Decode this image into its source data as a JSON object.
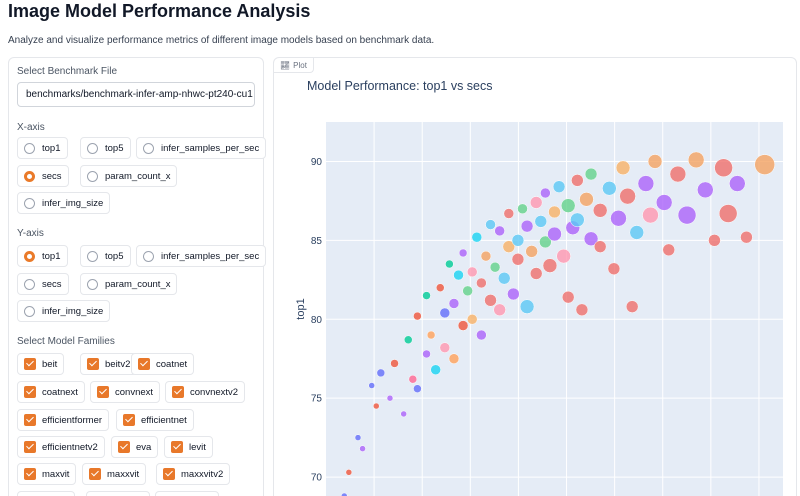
{
  "app": {
    "title": "Image Model Performance Analysis",
    "subtitle": "Analyze and visualize performance metrics of different image models based on benchmark data."
  },
  "controls": {
    "file_label": "Select Benchmark File",
    "file_value": "benchmarks/benchmark-infer-amp-nhwc-pt240-cu1",
    "xaxis_label": "X-axis",
    "yaxis_label": "Y-axis",
    "axis_options": [
      "top1",
      "top5",
      "infer_samples_per_sec",
      "secs",
      "param_count_x",
      "infer_img_size"
    ],
    "xaxis_selected": "secs",
    "yaxis_selected": "top1",
    "families_label": "Select Model Families",
    "families": [
      "beit",
      "beitv2",
      "coatnet",
      "coatnext",
      "convnext",
      "convnextv2",
      "efficientformer",
      "efficientnet",
      "efficientnetv2",
      "eva",
      "levit",
      "maxvit",
      "maxxvit",
      "maxxvitv2"
    ]
  },
  "plot": {
    "tab_label": "Plot",
    "tab_icon": "chart-icon"
  },
  "chart_data": {
    "type": "scatter",
    "title": "Model Performance: top1 vs secs",
    "xlabel": "",
    "ylabel": "top1",
    "ylim": [
      68.8,
      92.5
    ],
    "yticks": [
      70,
      75,
      80,
      85,
      90
    ],
    "xlim": [
      0,
      1
    ],
    "grid": true,
    "background": "#e5ecf6",
    "palette": [
      "#ef6f6c",
      "#ab63fa",
      "#5bc8f5",
      "#f4a261",
      "#63d28b",
      "#ff97b0",
      "#f7b267",
      "#e76f51"
    ],
    "points": [
      {
        "x": 0.04,
        "y": 68.8,
        "size": 3,
        "color": "#636efa"
      },
      {
        "x": 0.05,
        "y": 70.3,
        "size": 3,
        "color": "#ef553b"
      },
      {
        "x": 0.07,
        "y": 72.5,
        "size": 3,
        "color": "#636efa"
      },
      {
        "x": 0.08,
        "y": 71.8,
        "size": 3,
        "color": "#ab63fa"
      },
      {
        "x": 0.1,
        "y": 75.8,
        "size": 3,
        "color": "#636efa"
      },
      {
        "x": 0.11,
        "y": 74.5,
        "size": 3,
        "color": "#ef553b"
      },
      {
        "x": 0.12,
        "y": 76.6,
        "size": 4,
        "color": "#636efa"
      },
      {
        "x": 0.14,
        "y": 75.0,
        "size": 3,
        "color": "#ab63fa"
      },
      {
        "x": 0.15,
        "y": 77.2,
        "size": 4,
        "color": "#ef553b"
      },
      {
        "x": 0.17,
        "y": 74.0,
        "size": 3,
        "color": "#ab63fa"
      },
      {
        "x": 0.18,
        "y": 78.7,
        "size": 4,
        "color": "#00cc96"
      },
      {
        "x": 0.19,
        "y": 76.2,
        "size": 4,
        "color": "#ff6692"
      },
      {
        "x": 0.2,
        "y": 80.2,
        "size": 4,
        "color": "#ef553b"
      },
      {
        "x": 0.2,
        "y": 75.6,
        "size": 4,
        "color": "#636efa"
      },
      {
        "x": 0.22,
        "y": 77.8,
        "size": 4,
        "color": "#ab63fa"
      },
      {
        "x": 0.22,
        "y": 81.5,
        "size": 4,
        "color": "#00cc96"
      },
      {
        "x": 0.23,
        "y": 79.0,
        "size": 4,
        "color": "#ffa15a"
      },
      {
        "x": 0.24,
        "y": 76.8,
        "size": 5,
        "color": "#19d3f3"
      },
      {
        "x": 0.25,
        "y": 82.0,
        "size": 4,
        "color": "#ef553b"
      },
      {
        "x": 0.26,
        "y": 80.4,
        "size": 5,
        "color": "#636efa"
      },
      {
        "x": 0.26,
        "y": 78.2,
        "size": 5,
        "color": "#ff97b0"
      },
      {
        "x": 0.27,
        "y": 83.5,
        "size": 4,
        "color": "#00cc96"
      },
      {
        "x": 0.28,
        "y": 81.0,
        "size": 5,
        "color": "#ab63fa"
      },
      {
        "x": 0.28,
        "y": 77.5,
        "size": 5,
        "color": "#ffa15a"
      },
      {
        "x": 0.29,
        "y": 82.8,
        "size": 5,
        "color": "#19d3f3"
      },
      {
        "x": 0.3,
        "y": 79.6,
        "size": 5,
        "color": "#ef553b"
      },
      {
        "x": 0.3,
        "y": 84.2,
        "size": 4,
        "color": "#ab63fa"
      },
      {
        "x": 0.31,
        "y": 81.8,
        "size": 5,
        "color": "#63d28b"
      },
      {
        "x": 0.32,
        "y": 83.0,
        "size": 5,
        "color": "#ff97b0"
      },
      {
        "x": 0.32,
        "y": 80.0,
        "size": 5,
        "color": "#f7b267"
      },
      {
        "x": 0.33,
        "y": 85.2,
        "size": 5,
        "color": "#19d3f3"
      },
      {
        "x": 0.34,
        "y": 82.3,
        "size": 5,
        "color": "#ef6f6c"
      },
      {
        "x": 0.34,
        "y": 79.0,
        "size": 5,
        "color": "#ab63fa"
      },
      {
        "x": 0.35,
        "y": 84.0,
        "size": 5,
        "color": "#f4a261"
      },
      {
        "x": 0.36,
        "y": 86.0,
        "size": 5,
        "color": "#5bc8f5"
      },
      {
        "x": 0.36,
        "y": 81.2,
        "size": 6,
        "color": "#ef6f6c"
      },
      {
        "x": 0.37,
        "y": 83.3,
        "size": 5,
        "color": "#63d28b"
      },
      {
        "x": 0.38,
        "y": 85.6,
        "size": 5,
        "color": "#ab63fa"
      },
      {
        "x": 0.38,
        "y": 80.6,
        "size": 6,
        "color": "#ff97b0"
      },
      {
        "x": 0.39,
        "y": 82.6,
        "size": 6,
        "color": "#5bc8f5"
      },
      {
        "x": 0.4,
        "y": 86.7,
        "size": 5,
        "color": "#ef6f6c"
      },
      {
        "x": 0.4,
        "y": 84.6,
        "size": 6,
        "color": "#f7b267"
      },
      {
        "x": 0.41,
        "y": 81.6,
        "size": 6,
        "color": "#ab63fa"
      },
      {
        "x": 0.42,
        "y": 85.0,
        "size": 6,
        "color": "#5bc8f5"
      },
      {
        "x": 0.42,
        "y": 83.8,
        "size": 6,
        "color": "#ef6f6c"
      },
      {
        "x": 0.43,
        "y": 87.0,
        "size": 5,
        "color": "#63d28b"
      },
      {
        "x": 0.44,
        "y": 80.8,
        "size": 7,
        "color": "#5bc8f5"
      },
      {
        "x": 0.44,
        "y": 85.9,
        "size": 6,
        "color": "#ab63fa"
      },
      {
        "x": 0.45,
        "y": 84.3,
        "size": 6,
        "color": "#f4a261"
      },
      {
        "x": 0.46,
        "y": 87.4,
        "size": 6,
        "color": "#ff97b0"
      },
      {
        "x": 0.46,
        "y": 82.9,
        "size": 6,
        "color": "#ef6f6c"
      },
      {
        "x": 0.47,
        "y": 86.2,
        "size": 6,
        "color": "#5bc8f5"
      },
      {
        "x": 0.48,
        "y": 84.9,
        "size": 6,
        "color": "#63d28b"
      },
      {
        "x": 0.48,
        "y": 88.0,
        "size": 5,
        "color": "#ab63fa"
      },
      {
        "x": 0.49,
        "y": 83.4,
        "size": 7,
        "color": "#ef6f6c"
      },
      {
        "x": 0.5,
        "y": 86.8,
        "size": 6,
        "color": "#f7b267"
      },
      {
        "x": 0.5,
        "y": 85.4,
        "size": 7,
        "color": "#ab63fa"
      },
      {
        "x": 0.51,
        "y": 88.4,
        "size": 6,
        "color": "#5bc8f5"
      },
      {
        "x": 0.52,
        "y": 84.0,
        "size": 7,
        "color": "#ff97b0"
      },
      {
        "x": 0.53,
        "y": 87.2,
        "size": 7,
        "color": "#63d28b"
      },
      {
        "x": 0.53,
        "y": 81.4,
        "size": 6,
        "color": "#ef6f6c"
      },
      {
        "x": 0.54,
        "y": 85.8,
        "size": 7,
        "color": "#ab63fa"
      },
      {
        "x": 0.55,
        "y": 88.8,
        "size": 6,
        "color": "#ef6f6c"
      },
      {
        "x": 0.55,
        "y": 86.3,
        "size": 7,
        "color": "#5bc8f5"
      },
      {
        "x": 0.56,
        "y": 80.6,
        "size": 6,
        "color": "#ef6f6c"
      },
      {
        "x": 0.57,
        "y": 87.6,
        "size": 7,
        "color": "#f4a261"
      },
      {
        "x": 0.58,
        "y": 85.1,
        "size": 7,
        "color": "#ab63fa"
      },
      {
        "x": 0.58,
        "y": 89.2,
        "size": 6,
        "color": "#63d28b"
      },
      {
        "x": 0.6,
        "y": 86.9,
        "size": 7,
        "color": "#ef6f6c"
      },
      {
        "x": 0.6,
        "y": 84.6,
        "size": 6,
        "color": "#ef6f6c"
      },
      {
        "x": 0.62,
        "y": 88.3,
        "size": 7,
        "color": "#5bc8f5"
      },
      {
        "x": 0.63,
        "y": 83.2,
        "size": 6,
        "color": "#ef6f6c"
      },
      {
        "x": 0.64,
        "y": 86.4,
        "size": 8,
        "color": "#ab63fa"
      },
      {
        "x": 0.65,
        "y": 89.6,
        "size": 7,
        "color": "#f7b267"
      },
      {
        "x": 0.66,
        "y": 87.8,
        "size": 8,
        "color": "#ef6f6c"
      },
      {
        "x": 0.67,
        "y": 80.8,
        "size": 6,
        "color": "#ef6f6c"
      },
      {
        "x": 0.68,
        "y": 85.5,
        "size": 7,
        "color": "#5bc8f5"
      },
      {
        "x": 0.7,
        "y": 88.6,
        "size": 8,
        "color": "#ab63fa"
      },
      {
        "x": 0.71,
        "y": 86.6,
        "size": 8,
        "color": "#ff97b0"
      },
      {
        "x": 0.72,
        "y": 90.0,
        "size": 7,
        "color": "#f4a261"
      },
      {
        "x": 0.74,
        "y": 87.4,
        "size": 8,
        "color": "#ab63fa"
      },
      {
        "x": 0.75,
        "y": 84.4,
        "size": 6,
        "color": "#ef6f6c"
      },
      {
        "x": 0.77,
        "y": 89.2,
        "size": 8,
        "color": "#ef6f6c"
      },
      {
        "x": 0.79,
        "y": 86.6,
        "size": 9,
        "color": "#ab63fa"
      },
      {
        "x": 0.81,
        "y": 90.1,
        "size": 8,
        "color": "#f4a261"
      },
      {
        "x": 0.83,
        "y": 88.2,
        "size": 8,
        "color": "#ab63fa"
      },
      {
        "x": 0.85,
        "y": 85.0,
        "size": 6,
        "color": "#ef6f6c"
      },
      {
        "x": 0.87,
        "y": 89.6,
        "size": 9,
        "color": "#ef6f6c"
      },
      {
        "x": 0.88,
        "y": 86.7,
        "size": 9,
        "color": "#ef6f6c"
      },
      {
        "x": 0.9,
        "y": 88.6,
        "size": 8,
        "color": "#ab63fa"
      },
      {
        "x": 0.92,
        "y": 85.2,
        "size": 6,
        "color": "#ef6f6c"
      },
      {
        "x": 0.96,
        "y": 89.8,
        "size": 10,
        "color": "#f4a261"
      }
    ]
  }
}
